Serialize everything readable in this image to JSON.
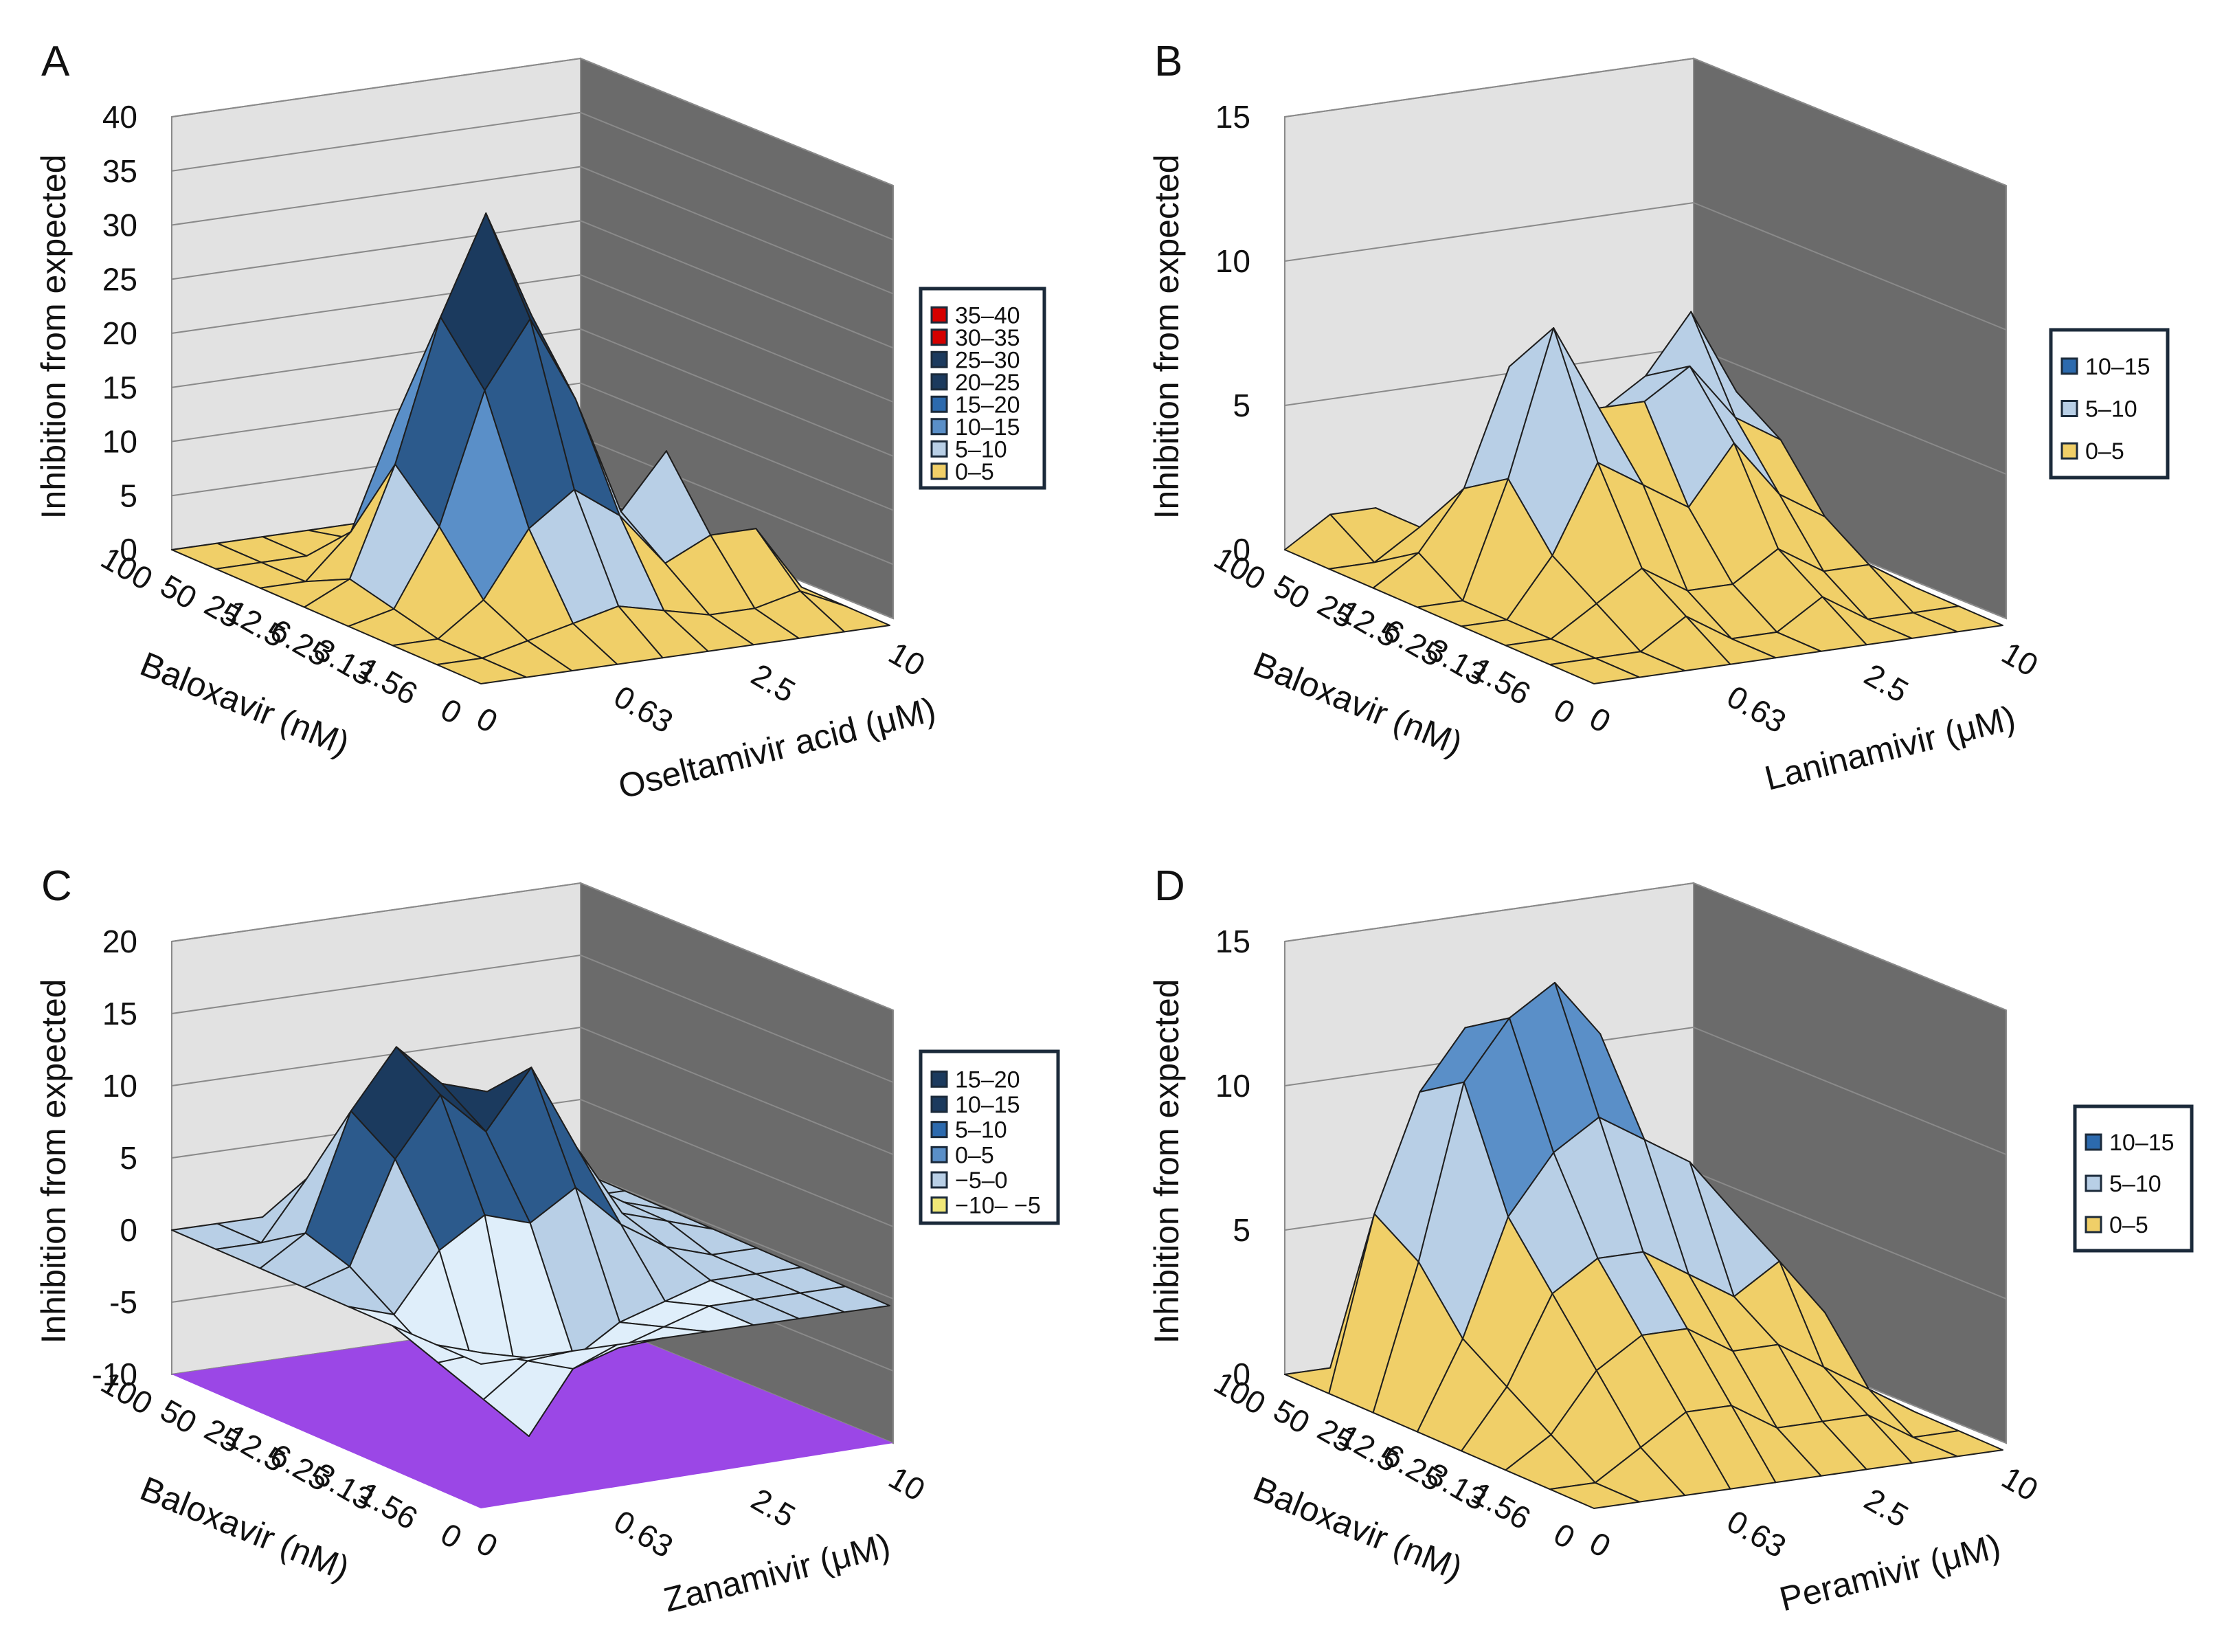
{
  "palette": {
    "wall_left": "#e2e2e2",
    "wall_right": "#6b6b6b",
    "gridline": "#8a8a8a",
    "edge": "#1e1e1e",
    "floor_purple": "#9b47e6",
    "yellow": "#f0cf68",
    "light_blue": "#b8cfe6",
    "mid_blue": "#5a8fc8",
    "dark_blue": "#2c5a8c",
    "navy": "#1b3a5e",
    "red": "#d40000",
    "pale": "#dfeefa"
  },
  "chart_data": [
    {
      "panel": "A",
      "type": "surface3d",
      "zlabel": "Inhibition from expected",
      "xlabel": "Baloxavir (nM)",
      "ylabel": "Oseltamivir acid (μM)",
      "x_ticks": [
        "100",
        "50",
        "25",
        "12.5",
        "6.25",
        "3.13",
        "1.56",
        "0"
      ],
      "y_ticks": [
        "0",
        "0.63",
        "2.5",
        "10"
      ],
      "z_ticks": [
        "0",
        "5",
        "10",
        "15",
        "20",
        "25",
        "30",
        "35",
        "40"
      ],
      "zlim": [
        0,
        40
      ],
      "legend": [
        {
          "label": "35–40",
          "color": "#d40000"
        },
        {
          "label": "30–35",
          "color": "#d40000"
        },
        {
          "label": "25–30",
          "color": "#1b3a5e"
        },
        {
          "label": "20–25",
          "color": "#1b3a5e"
        },
        {
          "label": "15–20",
          "color": "#2c6aae"
        },
        {
          "label": "10–15",
          "color": "#5a8fc8"
        },
        {
          "label": "5–10",
          "color": "#b8cfe6"
        },
        {
          "label": "0–5",
          "color": "#f0cf68"
        }
      ],
      "z_values": [
        [
          0,
          0,
          0,
          0,
          0,
          0,
          0,
          0,
          0,
          0
        ],
        [
          0,
          0,
          0,
          1,
          3,
          2,
          1,
          0,
          0,
          0
        ],
        [
          0,
          0,
          4,
          14,
          22,
          16,
          6,
          2,
          1,
          0
        ],
        [
          0,
          2,
          12,
          25,
          34,
          24,
          10,
          4,
          2,
          0
        ],
        [
          0,
          1,
          8,
          20,
          26,
          18,
          7,
          12,
          3,
          0
        ],
        [
          0,
          0,
          3,
          9,
          12,
          9,
          4,
          6,
          6,
          0
        ],
        [
          0,
          0,
          1,
          2,
          3,
          2,
          1,
          1,
          2,
          0
        ],
        [
          0,
          0,
          0,
          0,
          0,
          0,
          0,
          0,
          0,
          0
        ]
      ]
    },
    {
      "panel": "B",
      "type": "surface3d",
      "zlabel": "Inhibition from expected",
      "xlabel": "Baloxavir (nM)",
      "ylabel": "Laninamivir (μM)",
      "x_ticks": [
        "100",
        "50",
        "25",
        "12.5",
        "6.25",
        "3.13",
        "1.56",
        "0"
      ],
      "y_ticks": [
        "0",
        "0.63",
        "2.5",
        "10"
      ],
      "z_ticks": [
        "0",
        "5",
        "10",
        "15"
      ],
      "zlim": [
        0,
        15
      ],
      "legend": [
        {
          "label": "10–15",
          "color": "#2c6aae"
        },
        {
          "label": "5–10",
          "color": "#b8cfe6"
        },
        {
          "label": "0–5",
          "color": "#f0cf68"
        }
      ],
      "z_values": [
        [
          0,
          1,
          1,
          0,
          0,
          0,
          0,
          0,
          0,
          0
        ],
        [
          0,
          0,
          1,
          1,
          2,
          2,
          1,
          2,
          1,
          0
        ],
        [
          0,
          1,
          3,
          7,
          6,
          5,
          6,
          8,
          5,
          0
        ],
        [
          0,
          0,
          4,
          9,
          6,
          6,
          7,
          5,
          4,
          0
        ],
        [
          0,
          0,
          2,
          5,
          4,
          3,
          5,
          3,
          2,
          0
        ],
        [
          0,
          0,
          1,
          2,
          1,
          1,
          2,
          1,
          1,
          0
        ],
        [
          0,
          0,
          0,
          1,
          0,
          0,
          1,
          0,
          0,
          0
        ],
        [
          0,
          0,
          0,
          0,
          0,
          0,
          0,
          0,
          0,
          0
        ]
      ]
    },
    {
      "panel": "C",
      "type": "surface3d",
      "zlabel": "Inhibition from expected",
      "xlabel": "Baloxavir (nM)",
      "ylabel": "Zanamivir (μM)",
      "x_ticks": [
        "100",
        "50",
        "25",
        "12.5",
        "6.25",
        "3.13",
        "1.56",
        "0"
      ],
      "y_ticks": [
        "0",
        "0.63",
        "2.5",
        "10"
      ],
      "z_ticks": [
        "-10",
        "-5",
        "0",
        "5",
        "10",
        "15",
        "20"
      ],
      "zlim": [
        -10,
        20
      ],
      "legend": [
        {
          "label": "15–20",
          "color": "#1b3a5e"
        },
        {
          "label": "10–15",
          "color": "#1b3a5e"
        },
        {
          "label": "5–10",
          "color": "#2c6aae"
        },
        {
          "label": "0–5",
          "color": "#5a8fc8"
        },
        {
          "label": "−5–0",
          "color": "#b8cfe6"
        },
        {
          "label": "−10– −5",
          "color": "#f0e878"
        }
      ],
      "z_values": [
        [
          0,
          0,
          0,
          0,
          0,
          0,
          0,
          0,
          0,
          0
        ],
        [
          0,
          0,
          4,
          8,
          6,
          4,
          2,
          1,
          0,
          0
        ],
        [
          0,
          2,
          10,
          14,
          11,
          10,
          6,
          3,
          1,
          0
        ],
        [
          0,
          1,
          8,
          12,
          9,
          13,
          7,
          2,
          1,
          0
        ],
        [
          0,
          -1,
          3,
          5,
          4,
          6,
          3,
          1,
          0,
          0
        ],
        [
          0,
          -3,
          -6,
          -9,
          -4,
          -2,
          -1,
          0,
          0,
          0
        ],
        [
          0,
          -1,
          -2,
          -3,
          -2,
          -1,
          0,
          0,
          0,
          0
        ],
        [
          0,
          0,
          0,
          0,
          0,
          0,
          0,
          0,
          0,
          0
        ]
      ]
    },
    {
      "panel": "D",
      "type": "surface3d",
      "zlabel": "Inhibition from expected",
      "xlabel": "Baloxavir (nM)",
      "ylabel": "Peramivir (μM)",
      "x_ticks": [
        "100",
        "50",
        "25",
        "12.5",
        "6.25",
        "3.13",
        "1.56",
        "0"
      ],
      "y_ticks": [
        "0",
        "0.63",
        "2.5",
        "10"
      ],
      "z_ticks": [
        "0",
        "5",
        "10",
        "15"
      ],
      "zlim": [
        0,
        15
      ],
      "legend": [
        {
          "label": "10–15",
          "color": "#2c6aae"
        },
        {
          "label": "5–10",
          "color": "#b8cfe6"
        },
        {
          "label": "0–5",
          "color": "#f0cf68"
        }
      ],
      "z_values": [
        [
          0,
          0,
          0,
          0,
          0,
          0,
          0,
          0,
          0,
          0
        ],
        [
          0,
          6,
          10,
          12,
          12,
          11,
          6,
          3,
          1,
          0
        ],
        [
          0,
          5,
          11,
          13,
          14,
          12,
          8,
          5,
          3,
          0
        ],
        [
          0,
          3,
          7,
          9,
          10,
          9,
          8,
          6,
          4,
          0
        ],
        [
          0,
          2,
          5,
          6,
          6,
          5,
          4,
          5,
          3,
          0
        ],
        [
          0,
          1,
          3,
          4,
          4,
          3,
          3,
          2,
          1,
          0
        ],
        [
          0,
          0,
          1,
          2,
          2,
          1,
          1,
          1,
          0,
          0
        ],
        [
          0,
          0,
          0,
          0,
          0,
          0,
          0,
          0,
          0,
          0
        ]
      ]
    }
  ]
}
